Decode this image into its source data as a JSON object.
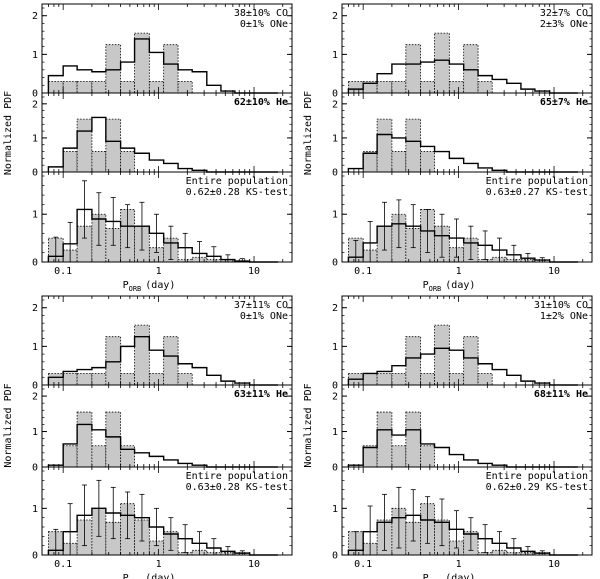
{
  "figure": {
    "ylabel": "Normalized PDF",
    "xlabel_main": "P",
    "xlabel_sub": "ORB",
    "xlabel_unit": "(day)",
    "xticks": [
      "0.1",
      "1",
      "10"
    ],
    "colors": {
      "observed_fill": "#c8c8c8",
      "line": "#000000"
    }
  },
  "chart_data": [
    {
      "type": "bar",
      "xscale": "log",
      "xlim": [
        0.06,
        25
      ],
      "bin_edges": [
        0.07,
        0.1,
        0.14,
        0.2,
        0.28,
        0.4,
        0.56,
        0.8,
        1.13,
        1.6,
        2.25,
        3.2,
        4.5,
        6.3,
        9,
        12.6,
        17.8
      ],
      "panels": [
        {
          "role": "co",
          "ylim": [
            0,
            2.2
          ],
          "yticks": [
            "0",
            "1",
            "2"
          ],
          "label_lines": [
            "38±10% CO",
            "0±1% ONe"
          ],
          "observed": [
            0.3,
            0.3,
            0.3,
            0.3,
            1.25,
            0.3,
            1.55,
            0.3,
            1.25,
            0.3,
            0,
            0,
            0,
            0,
            0,
            0
          ],
          "model": [
            0.45,
            0.7,
            0.6,
            0.55,
            0.6,
            0.8,
            1.4,
            1.05,
            0.75,
            0.6,
            0.55,
            0.2,
            0.05,
            0,
            0,
            0
          ]
        },
        {
          "role": "he",
          "ylim": [
            0,
            2.2
          ],
          "yticks": [
            "0",
            "1",
            "2"
          ],
          "label_lines": [
            "62±10% He"
          ],
          "observed": [
            0,
            0.6,
            1.55,
            0.6,
            1.55,
            0.6,
            0,
            0,
            0,
            0,
            0,
            0,
            0,
            0,
            0,
            0
          ],
          "model": [
            0.15,
            0.7,
            1.2,
            1.6,
            0.9,
            0.7,
            0.55,
            0.35,
            0.25,
            0.1,
            0.05,
            0,
            0,
            0,
            0,
            0
          ]
        },
        {
          "role": "all",
          "ylim": [
            0,
            1.8
          ],
          "yticks": [
            "0",
            "1"
          ],
          "label_lines": [
            "Entire population",
            "0.62±0.28 KS-test"
          ],
          "observed": [
            0.5,
            0.25,
            0.75,
            1.0,
            0.7,
            1.1,
            0.75,
            0.3,
            0.5,
            0.05,
            0.1,
            0.05,
            0.05,
            0,
            0,
            0
          ],
          "model": [
            0.12,
            0.38,
            1.1,
            0.9,
            0.85,
            0.75,
            0.75,
            0.6,
            0.4,
            0.3,
            0.18,
            0.12,
            0.05,
            0.02,
            0,
            0
          ],
          "errors": [
            0.4,
            0.45,
            0.6,
            0.55,
            0.5,
            0.45,
            0.5,
            0.4,
            0.35,
            0.3,
            0.25,
            0.2,
            0.1,
            0.05,
            0,
            0
          ]
        }
      ]
    },
    {
      "type": "bar",
      "xscale": "log",
      "xlim": [
        0.06,
        25
      ],
      "bin_edges": [
        0.07,
        0.1,
        0.14,
        0.2,
        0.28,
        0.4,
        0.56,
        0.8,
        1.13,
        1.6,
        2.25,
        3.2,
        4.5,
        6.3,
        9,
        12.6,
        17.8
      ],
      "panels": [
        {
          "role": "co",
          "ylim": [
            0,
            2.2
          ],
          "yticks": [
            "0",
            "1",
            "2"
          ],
          "label_lines": [
            "32±7% CO",
            "2±3% ONe"
          ],
          "observed": [
            0.3,
            0.3,
            0.3,
            0.3,
            1.25,
            0.3,
            1.55,
            0.3,
            1.25,
            0.3,
            0,
            0,
            0,
            0,
            0,
            0
          ],
          "model": [
            0.1,
            0.25,
            0.5,
            0.75,
            0.75,
            0.8,
            0.85,
            0.75,
            0.6,
            0.45,
            0.35,
            0.25,
            0.1,
            0.05,
            0,
            0
          ]
        },
        {
          "role": "he",
          "ylim": [
            0,
            2.2
          ],
          "yticks": [
            "0",
            "1",
            "2"
          ],
          "label_lines": [
            "65±7% He"
          ],
          "observed": [
            0,
            0.6,
            1.55,
            0.6,
            1.55,
            0.6,
            0,
            0,
            0,
            0,
            0,
            0,
            0,
            0,
            0,
            0
          ],
          "model": [
            0.1,
            0.55,
            1.1,
            1.0,
            0.9,
            0.75,
            0.6,
            0.4,
            0.25,
            0.12,
            0.05,
            0,
            0,
            0,
            0,
            0
          ]
        },
        {
          "role": "all",
          "ylim": [
            0,
            1.8
          ],
          "yticks": [
            "0",
            "1"
          ],
          "label_lines": [
            "Entire population",
            "0.63±0.27 KS-test"
          ],
          "observed": [
            0.5,
            0.25,
            0.75,
            1.0,
            0.7,
            1.1,
            0.75,
            0.3,
            0.5,
            0.05,
            0.1,
            0.05,
            0.05,
            0,
            0,
            0
          ],
          "model": [
            0.1,
            0.4,
            0.75,
            0.8,
            0.75,
            0.65,
            0.55,
            0.5,
            0.4,
            0.35,
            0.25,
            0.15,
            0.08,
            0.04,
            0,
            0
          ],
          "errors": [
            0.35,
            0.45,
            0.5,
            0.5,
            0.45,
            0.45,
            0.45,
            0.4,
            0.35,
            0.3,
            0.25,
            0.2,
            0.1,
            0.05,
            0,
            0
          ]
        }
      ]
    },
    {
      "type": "bar",
      "xscale": "log",
      "xlim": [
        0.06,
        25
      ],
      "bin_edges": [
        0.07,
        0.1,
        0.14,
        0.2,
        0.28,
        0.4,
        0.56,
        0.8,
        1.13,
        1.6,
        2.25,
        3.2,
        4.5,
        6.3,
        9,
        12.6,
        17.8
      ],
      "panels": [
        {
          "role": "co",
          "ylim": [
            0,
            2.2
          ],
          "yticks": [
            "0",
            "1",
            "2"
          ],
          "label_lines": [
            "37±11% CO",
            "0±1% ONe"
          ],
          "observed": [
            0.3,
            0.3,
            0.3,
            0.3,
            1.25,
            0.3,
            1.55,
            0.3,
            1.25,
            0.3,
            0,
            0,
            0,
            0,
            0,
            0
          ],
          "model": [
            0.2,
            0.35,
            0.4,
            0.45,
            0.6,
            1.0,
            1.25,
            0.9,
            0.75,
            0.55,
            0.45,
            0.25,
            0.1,
            0.05,
            0,
            0
          ]
        },
        {
          "role": "he",
          "ylim": [
            0,
            2.2
          ],
          "yticks": [
            "0",
            "1",
            "2"
          ],
          "label_lines": [
            "63±11% He"
          ],
          "observed": [
            0,
            0.6,
            1.55,
            0.6,
            1.55,
            0.6,
            0,
            0,
            0,
            0,
            0,
            0,
            0,
            0,
            0,
            0
          ],
          "model": [
            0.05,
            0.65,
            1.2,
            1.05,
            0.85,
            0.5,
            0.4,
            0.3,
            0.2,
            0.1,
            0.05,
            0,
            0,
            0,
            0,
            0
          ]
        },
        {
          "role": "all",
          "ylim": [
            0,
            1.8
          ],
          "yticks": [
            "0",
            "1"
          ],
          "label_lines": [
            "Entire population",
            "0.63±0.28 KS-test"
          ],
          "observed": [
            0.5,
            0.25,
            0.75,
            1.0,
            0.7,
            1.1,
            0.75,
            0.3,
            0.5,
            0.05,
            0.1,
            0.05,
            0.05,
            0,
            0,
            0
          ],
          "model": [
            0.1,
            0.5,
            0.85,
            1.0,
            0.9,
            0.85,
            0.8,
            0.6,
            0.45,
            0.35,
            0.25,
            0.15,
            0.08,
            0.04,
            0,
            0
          ],
          "errors": [
            0.45,
            0.6,
            0.65,
            0.6,
            0.55,
            0.5,
            0.5,
            0.4,
            0.35,
            0.3,
            0.25,
            0.2,
            0.1,
            0.05,
            0,
            0
          ]
        }
      ]
    },
    {
      "type": "bar",
      "xscale": "log",
      "xlim": [
        0.06,
        25
      ],
      "bin_edges": [
        0.07,
        0.1,
        0.14,
        0.2,
        0.28,
        0.4,
        0.56,
        0.8,
        1.13,
        1.6,
        2.25,
        3.2,
        4.5,
        6.3,
        9,
        12.6,
        17.8
      ],
      "panels": [
        {
          "role": "co",
          "ylim": [
            0,
            2.2
          ],
          "yticks": [
            "0",
            "1",
            "2"
          ],
          "label_lines": [
            "31±10% CO",
            "1±2% ONe"
          ],
          "observed": [
            0.3,
            0.3,
            0.3,
            0.3,
            1.25,
            0.3,
            1.55,
            0.3,
            1.25,
            0.3,
            0,
            0,
            0,
            0,
            0,
            0
          ],
          "model": [
            0.15,
            0.3,
            0.35,
            0.5,
            0.7,
            0.8,
            0.95,
            0.9,
            0.7,
            0.55,
            0.4,
            0.25,
            0.1,
            0.05,
            0,
            0
          ]
        },
        {
          "role": "he",
          "ylim": [
            0,
            2.2
          ],
          "yticks": [
            "0",
            "1",
            "2"
          ],
          "label_lines": [
            "68±11% He"
          ],
          "observed": [
            0,
            0.6,
            1.55,
            0.6,
            1.55,
            0.6,
            0,
            0,
            0,
            0,
            0,
            0,
            0,
            0,
            0,
            0
          ],
          "model": [
            0.05,
            0.55,
            1.05,
            0.9,
            1.05,
            0.65,
            0.55,
            0.35,
            0.2,
            0.1,
            0.05,
            0,
            0,
            0,
            0,
            0
          ]
        },
        {
          "role": "all",
          "ylim": [
            0,
            1.8
          ],
          "yticks": [
            "0",
            "1"
          ],
          "label_lines": [
            "Entire population",
            "0.62±0.29 KS-test"
          ],
          "observed": [
            0.5,
            0.25,
            0.75,
            1.0,
            0.7,
            1.1,
            0.75,
            0.3,
            0.5,
            0.05,
            0.1,
            0.05,
            0.05,
            0,
            0,
            0
          ],
          "model": [
            0.1,
            0.5,
            0.7,
            0.8,
            0.85,
            0.75,
            0.7,
            0.55,
            0.45,
            0.35,
            0.25,
            0.15,
            0.08,
            0.04,
            0,
            0
          ],
          "errors": [
            0.4,
            0.55,
            0.6,
            0.65,
            0.55,
            0.5,
            0.5,
            0.4,
            0.35,
            0.3,
            0.25,
            0.2,
            0.1,
            0.05,
            0,
            0
          ]
        }
      ]
    }
  ]
}
